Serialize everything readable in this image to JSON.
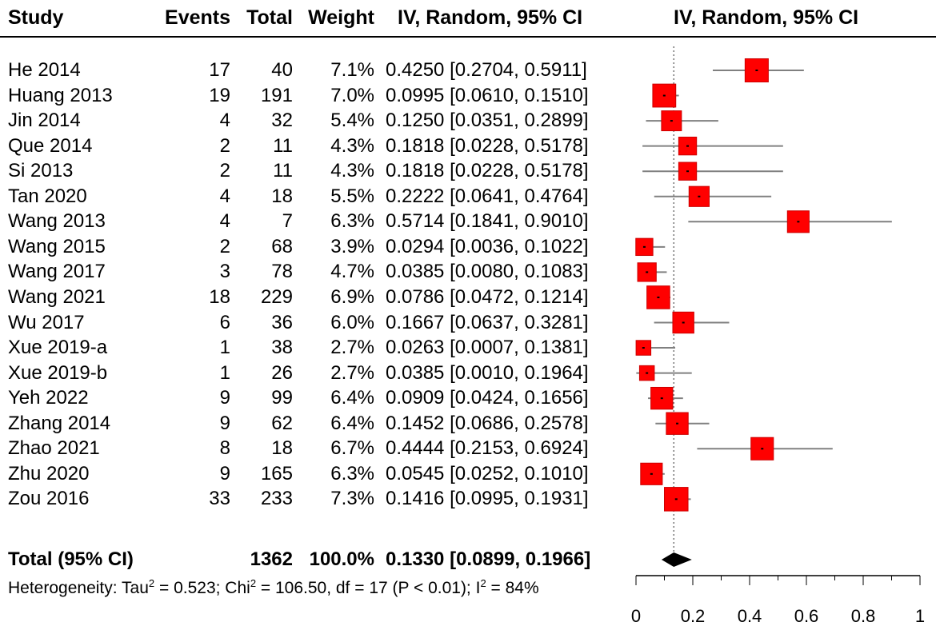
{
  "headers": {
    "study": "Study",
    "events": "Events",
    "total": "Total",
    "weight": "Weight",
    "ci": "IV, Random, 95% CI",
    "plot_ci": "IV, Random, 95% CI"
  },
  "rows": [
    {
      "study": "He 2014",
      "events": "17",
      "total": "40",
      "weight": "7.1%",
      "ci": "0.4250 [0.2704, 0.5911]"
    },
    {
      "study": "Huang 2013",
      "events": "19",
      "total": "191",
      "weight": "7.0%",
      "ci": "0.0995 [0.0610, 0.1510]"
    },
    {
      "study": "Jin 2014",
      "events": "4",
      "total": "32",
      "weight": "5.4%",
      "ci": "0.1250 [0.0351, 0.2899]"
    },
    {
      "study": "Que 2014",
      "events": "2",
      "total": "11",
      "weight": "4.3%",
      "ci": "0.1818 [0.0228, 0.5178]"
    },
    {
      "study": "Si 2013",
      "events": "2",
      "total": "11",
      "weight": "4.3%",
      "ci": "0.1818 [0.0228, 0.5178]"
    },
    {
      "study": "Tan 2020",
      "events": "4",
      "total": "18",
      "weight": "5.5%",
      "ci": "0.2222 [0.0641, 0.4764]"
    },
    {
      "study": "Wang 2013",
      "events": "4",
      "total": "7",
      "weight": "6.3%",
      "ci": "0.5714 [0.1841, 0.9010]"
    },
    {
      "study": "Wang 2015",
      "events": "2",
      "total": "68",
      "weight": "3.9%",
      "ci": "0.0294 [0.0036, 0.1022]"
    },
    {
      "study": "Wang 2017",
      "events": "3",
      "total": "78",
      "weight": "4.7%",
      "ci": "0.0385 [0.0080, 0.1083]"
    },
    {
      "study": "Wang 2021",
      "events": "18",
      "total": "229",
      "weight": "6.9%",
      "ci": "0.0786 [0.0472, 0.1214]"
    },
    {
      "study": "Wu 2017",
      "events": "6",
      "total": "36",
      "weight": "6.0%",
      "ci": "0.1667 [0.0637, 0.3281]"
    },
    {
      "study": "Xue 2019-a",
      "events": "1",
      "total": "38",
      "weight": "2.7%",
      "ci": "0.0263 [0.0007, 0.1381]"
    },
    {
      "study": "Xue 2019-b",
      "events": "1",
      "total": "26",
      "weight": "2.7%",
      "ci": "0.0385 [0.0010, 0.1964]"
    },
    {
      "study": "Yeh 2022",
      "events": "9",
      "total": "99",
      "weight": "6.4%",
      "ci": "0.0909 [0.0424, 0.1656]"
    },
    {
      "study": "Zhang 2014",
      "events": "9",
      "total": "62",
      "weight": "6.4%",
      "ci": "0.1452 [0.0686, 0.2578]"
    },
    {
      "study": "Zhao 2021",
      "events": "8",
      "total": "18",
      "weight": "6.7%",
      "ci": "0.4444 [0.2153, 0.6924]"
    },
    {
      "study": "Zhu 2020",
      "events": "9",
      "total": "165",
      "weight": "6.3%",
      "ci": "0.0545 [0.0252, 0.1010]"
    },
    {
      "study": "Zou 2016",
      "events": "33",
      "total": "233",
      "weight": "7.3%",
      "ci": "0.1416 [0.0995, 0.1931]"
    }
  ],
  "total_row": {
    "label": "Total (95% CI)",
    "total": "1362",
    "weight": "100.0%",
    "ci": "0.1330 [0.0899, 0.1966]"
  },
  "heterogeneity": {
    "prefix": "Heterogeneity: Tau",
    "sup1": "2",
    "mid1": " = 0.523; Chi",
    "sup2": "2",
    "mid2": " = 106.50, df = 17 (P < 0.01); I",
    "sup3": "2",
    "suffix": " = 84%"
  },
  "colors": {
    "square": "#ff0000",
    "square_edge": "#cc0000",
    "ci_line": "#808080",
    "diamond": "#000000"
  },
  "chart_data": {
    "type": "forest",
    "title": "IV, Random, 95% CI",
    "xlabel": "",
    "ylabel": "",
    "xlim": [
      0,
      1
    ],
    "xticks": [
      0,
      0.2,
      0.4,
      0.6,
      0.8,
      1
    ],
    "tick_labels": [
      "0",
      "0.2",
      "0.4",
      "0.6",
      "0.8",
      "1"
    ],
    "reference_line": 0.133,
    "studies": [
      {
        "name": "He 2014",
        "estimate": 0.425,
        "lower": 0.2704,
        "upper": 0.5911,
        "weight": 7.1
      },
      {
        "name": "Huang 2013",
        "estimate": 0.0995,
        "lower": 0.061,
        "upper": 0.151,
        "weight": 7.0
      },
      {
        "name": "Jin 2014",
        "estimate": 0.125,
        "lower": 0.0351,
        "upper": 0.2899,
        "weight": 5.4
      },
      {
        "name": "Que 2014",
        "estimate": 0.1818,
        "lower": 0.0228,
        "upper": 0.5178,
        "weight": 4.3
      },
      {
        "name": "Si 2013",
        "estimate": 0.1818,
        "lower": 0.0228,
        "upper": 0.5178,
        "weight": 4.3
      },
      {
        "name": "Tan 2020",
        "estimate": 0.2222,
        "lower": 0.0641,
        "upper": 0.4764,
        "weight": 5.5
      },
      {
        "name": "Wang 2013",
        "estimate": 0.5714,
        "lower": 0.1841,
        "upper": 0.901,
        "weight": 6.3
      },
      {
        "name": "Wang 2015",
        "estimate": 0.0294,
        "lower": 0.0036,
        "upper": 0.1022,
        "weight": 3.9
      },
      {
        "name": "Wang 2017",
        "estimate": 0.0385,
        "lower": 0.008,
        "upper": 0.1083,
        "weight": 4.7
      },
      {
        "name": "Wang 2021",
        "estimate": 0.0786,
        "lower": 0.0472,
        "upper": 0.1214,
        "weight": 6.9
      },
      {
        "name": "Wu 2017",
        "estimate": 0.1667,
        "lower": 0.0637,
        "upper": 0.3281,
        "weight": 6.0
      },
      {
        "name": "Xue 2019-a",
        "estimate": 0.0263,
        "lower": 0.0007,
        "upper": 0.1381,
        "weight": 2.7
      },
      {
        "name": "Xue 2019-b",
        "estimate": 0.0385,
        "lower": 0.001,
        "upper": 0.1964,
        "weight": 2.7
      },
      {
        "name": "Yeh 2022",
        "estimate": 0.0909,
        "lower": 0.0424,
        "upper": 0.1656,
        "weight": 6.4
      },
      {
        "name": "Zhang 2014",
        "estimate": 0.1452,
        "lower": 0.0686,
        "upper": 0.2578,
        "weight": 6.4
      },
      {
        "name": "Zhao 2021",
        "estimate": 0.4444,
        "lower": 0.2153,
        "upper": 0.6924,
        "weight": 6.7
      },
      {
        "name": "Zhu 2020",
        "estimate": 0.0545,
        "lower": 0.0252,
        "upper": 0.101,
        "weight": 6.3
      },
      {
        "name": "Zou 2016",
        "estimate": 0.1416,
        "lower": 0.0995,
        "upper": 0.1931,
        "weight": 7.3
      }
    ],
    "pooled": {
      "estimate": 0.133,
      "lower": 0.0899,
      "upper": 0.1966
    }
  }
}
